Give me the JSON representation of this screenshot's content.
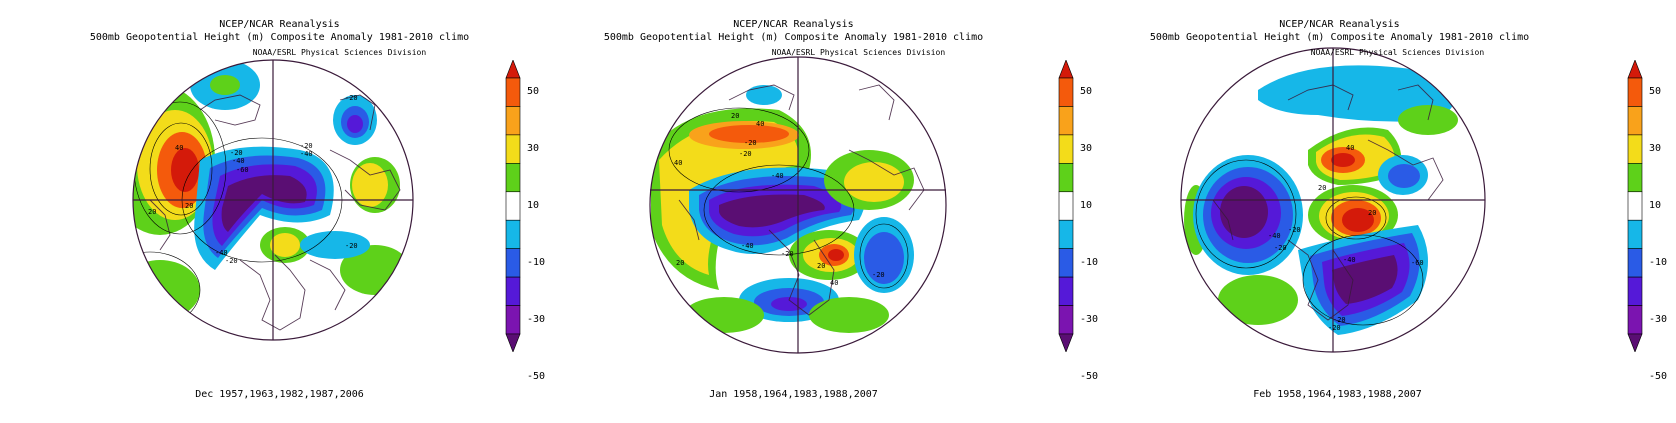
{
  "panels": [
    {
      "title": "NCEP/NCAR Reanalysis",
      "subtitle": "500mb Geopotential Height (m) Composite Anomaly 1981-2010 climo",
      "credit": "NOAA/ESRL Physical Sciences Division",
      "caption": "Dec 1957,1963,1982,1987,2006",
      "contour_labels": [
        "20",
        "40",
        "-20",
        "-40",
        "-60",
        "-20",
        "-40",
        "-20",
        "20",
        "-40",
        "-20",
        "-20"
      ]
    },
    {
      "title": "NCEP/NCAR Reanalysis",
      "subtitle": "500mb Geopotential Height (m) Composite Anomaly 1981-2010 climo",
      "credit": "NOAA/ESRL Physical Sciences Division",
      "caption": "Jan 1958,1964,1983,1988,2007",
      "contour_labels": [
        "20",
        "40",
        "-20",
        "-20",
        "-40",
        "40",
        "20",
        "-40",
        "-20",
        "-20",
        "20",
        "40"
      ]
    },
    {
      "title": "NCEP/NCAR Reanalysis",
      "subtitle": "500mb Geopotential Height (m) Composite Anomaly 1981-2010 climo",
      "credit": "NOAA/ESRL Physical Sciences Division",
      "caption": "Feb 1958,1964,1983,1988,2007",
      "contour_labels": [
        "40",
        "20",
        "-20",
        "-40",
        "-20",
        "-40",
        "-60",
        "-20",
        "20",
        "-20"
      ]
    }
  ],
  "colorbar": {
    "labels": [
      "50",
      "30",
      "10",
      "-10",
      "-30",
      "-50"
    ],
    "levels": [
      {
        "range": "above 50",
        "color": "#d41a0a"
      },
      {
        "range": "40 to 50",
        "color": "#f45a0c"
      },
      {
        "range": "30 to 40",
        "color": "#f9a21b"
      },
      {
        "range": "20 to 30",
        "color": "#f3dc1a"
      },
      {
        "range": "10 to 20",
        "color": "#5ed11a"
      },
      {
        "range": "-10 to 10",
        "color": "#ffffff"
      },
      {
        "range": "-20 to -10",
        "color": "#16b7e8"
      },
      {
        "range": "-30 to -20",
        "color": "#2a5be6"
      },
      {
        "range": "-40 to -30",
        "color": "#5519d8"
      },
      {
        "range": "-50 to -40",
        "color": "#7b14b0"
      },
      {
        "range": "below -50",
        "color": "#5a0e73"
      }
    ]
  }
}
